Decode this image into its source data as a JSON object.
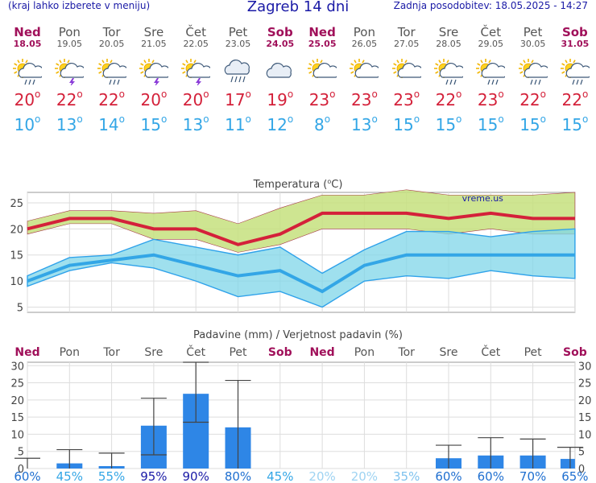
{
  "header": {
    "menu_hint": "(kraj lahko izberete v meniju)",
    "title": "Zagreb 14 dni",
    "updated": "Zadnja posodobitev: 18.05.2025 - 14:27"
  },
  "days": [
    {
      "name": "Ned",
      "date": "18.05",
      "sunday": true,
      "icon": "sun-cloud-rain-icon",
      "tmax": "20",
      "tmin": "10"
    },
    {
      "name": "Pon",
      "date": "19.05",
      "sunday": false,
      "icon": "sun-cloud-thunderstorm-icon",
      "tmax": "22",
      "tmin": "13"
    },
    {
      "name": "Tor",
      "date": "20.05",
      "sunday": false,
      "icon": "sun-cloud-rain-icon",
      "tmax": "22",
      "tmin": "14"
    },
    {
      "name": "Sre",
      "date": "21.05",
      "sunday": false,
      "icon": "sun-cloud-thunderstorm-icon",
      "tmax": "20",
      "tmin": "15"
    },
    {
      "name": "Čet",
      "date": "22.05",
      "sunday": false,
      "icon": "sun-cloud-thunderstorm-icon",
      "tmax": "20",
      "tmin": "13"
    },
    {
      "name": "Pet",
      "date": "23.05",
      "sunday": false,
      "icon": "cloud-rain-icon",
      "tmax": "17",
      "tmin": "11"
    },
    {
      "name": "Sob",
      "date": "24.05",
      "sunday": true,
      "icon": "cloudy-icon",
      "tmax": "19",
      "tmin": "12"
    },
    {
      "name": "Ned",
      "date": "25.05",
      "sunday": true,
      "icon": "sun-cloud-icon",
      "tmax": "23",
      "tmin": "8"
    },
    {
      "name": "Pon",
      "date": "26.05",
      "sunday": false,
      "icon": "sun-cloud-icon",
      "tmax": "23",
      "tmin": "13"
    },
    {
      "name": "Tor",
      "date": "27.05",
      "sunday": false,
      "icon": "sun-cloud-icon",
      "tmax": "23",
      "tmin": "15"
    },
    {
      "name": "Sre",
      "date": "28.05",
      "sunday": false,
      "icon": "sun-cloud-rain-icon",
      "tmax": "22",
      "tmin": "15"
    },
    {
      "name": "Čet",
      "date": "29.05",
      "sunday": false,
      "icon": "sun-cloud-rain-icon",
      "tmax": "23",
      "tmin": "15"
    },
    {
      "name": "Pet",
      "date": "30.05",
      "sunday": false,
      "icon": "sun-cloud-rain-icon",
      "tmax": "22",
      "tmin": "15"
    },
    {
      "name": "Sob",
      "date": "31.05",
      "sunday": true,
      "icon": "sun-cloud-rain-icon",
      "tmax": "22",
      "tmin": "15"
    }
  ],
  "degree_symbol": "o",
  "colors": {
    "max": "#d4213a",
    "min": "#33a6e6",
    "max_band": "#c5e07e",
    "min_band": "#7fd6e8",
    "overlap": "#7fc27f",
    "bar": "#2e86e6",
    "sunday": "#a0105a",
    "title": "#1a1aa6"
  },
  "chart_data": [
    {
      "type": "line",
      "title": "Temperatura (°C)",
      "title_text": "Temperatura (",
      "title_unit": "C)",
      "watermark": "vreme.us",
      "ylim": [
        4,
        27
      ],
      "yticks": [
        "5",
        "10",
        "15",
        "20",
        "25"
      ],
      "grid": true,
      "series": [
        {
          "name": "max",
          "values": [
            20,
            22,
            22,
            20,
            20,
            17,
            19,
            23,
            23,
            23,
            22,
            23,
            22,
            22
          ],
          "band_low": [
            19,
            21,
            21,
            18,
            18,
            15.5,
            17,
            20,
            20,
            20,
            19,
            20,
            19,
            19
          ],
          "band_high": [
            21.5,
            23.5,
            23.5,
            23,
            23.5,
            21,
            24,
            26.5,
            26.5,
            27.5,
            26.5,
            26.5,
            26.5,
            27
          ]
        },
        {
          "name": "min",
          "values": [
            10,
            13,
            14,
            15,
            13,
            11,
            12,
            8,
            13,
            15,
            15,
            15,
            15,
            15
          ],
          "band_low": [
            9,
            12,
            13.5,
            12.5,
            10,
            7,
            8,
            5,
            10,
            11,
            10.5,
            12,
            11,
            10.5
          ],
          "band_high": [
            11,
            14.5,
            15,
            18,
            16.5,
            15,
            16.5,
            11.5,
            16,
            19.5,
            19.5,
            18.5,
            19.5,
            20
          ]
        }
      ]
    },
    {
      "type": "bar",
      "title": "Padavine (mm) / Verjetnost padavin (%)",
      "ylim": [
        0,
        31
      ],
      "yticks": [
        "0",
        "5",
        "10",
        "15",
        "20",
        "25",
        "30"
      ],
      "grid": true,
      "values": [
        0,
        1.5,
        0.7,
        12.5,
        21.8,
        12,
        0,
        0,
        0,
        0,
        3,
        3.8,
        3.8,
        2.8
      ],
      "err_low": [
        0,
        0,
        0,
        4,
        13.5,
        0,
        0,
        0,
        0,
        0,
        0,
        0,
        0,
        0
      ],
      "err_high": [
        3,
        5.5,
        4.5,
        20.5,
        31,
        25.7,
        0,
        0,
        0,
        0,
        6.8,
        9,
        8.6,
        6.2
      ],
      "probabilities": [
        "60%",
        "45%",
        "55%",
        "95%",
        "90%",
        "80%",
        "45%",
        "20%",
        "20%",
        "35%",
        "60%",
        "60%",
        "70%",
        "65%"
      ],
      "probability_colors": [
        "#1f6fd0",
        "#33a6e6",
        "#33a6e6",
        "#1a1aa6",
        "#1a1aa6",
        "#1f6fd0",
        "#33a6e6",
        "#9ed3f2",
        "#9ed3f2",
        "#7fc2ee",
        "#1f6fd0",
        "#1f6fd0",
        "#1f6fd0",
        "#1f6fd0"
      ]
    }
  ]
}
